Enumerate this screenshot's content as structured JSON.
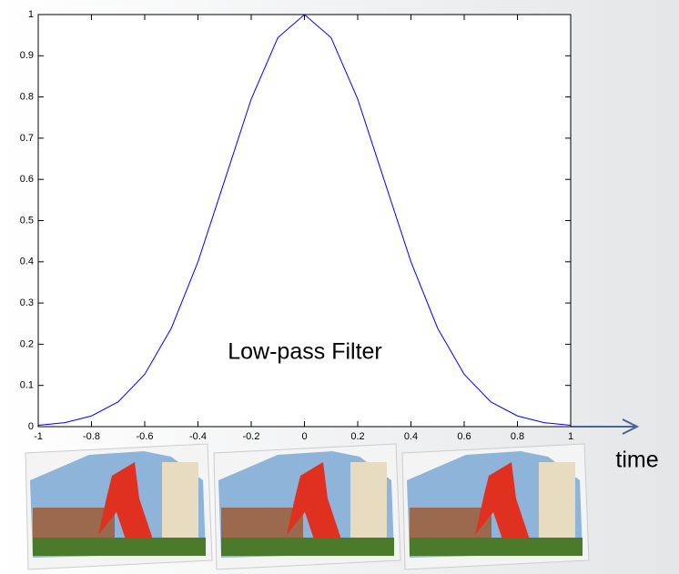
{
  "chart_data": {
    "type": "line",
    "annotation": "Low-pass Filter",
    "xlabel": "time",
    "x": [
      -1,
      -0.9,
      -0.8,
      -0.7,
      -0.6,
      -0.5,
      -0.4,
      -0.3,
      -0.2,
      -0.1,
      0,
      0.1,
      0.2,
      0.3,
      0.4,
      0.5,
      0.6,
      0.7,
      0.8,
      0.9,
      1
    ],
    "values": [
      0.0033,
      0.0097,
      0.026,
      0.06,
      0.127,
      0.239,
      0.4,
      0.597,
      0.795,
      0.944,
      1,
      0.944,
      0.795,
      0.597,
      0.4,
      0.239,
      0.127,
      0.06,
      0.026,
      0.0097,
      0.0033
    ],
    "color": "#0000ff",
    "xlim": [
      -1,
      1
    ],
    "ylim": [
      0,
      1
    ],
    "xticks": [
      -1,
      -0.8,
      -0.6,
      -0.4,
      -0.2,
      0,
      0.2,
      0.4,
      0.6,
      0.8,
      1
    ],
    "yticks": [
      0,
      0.1,
      0.2,
      0.3,
      0.4,
      0.5,
      0.6,
      0.7,
      0.8,
      0.9,
      1
    ]
  }
}
